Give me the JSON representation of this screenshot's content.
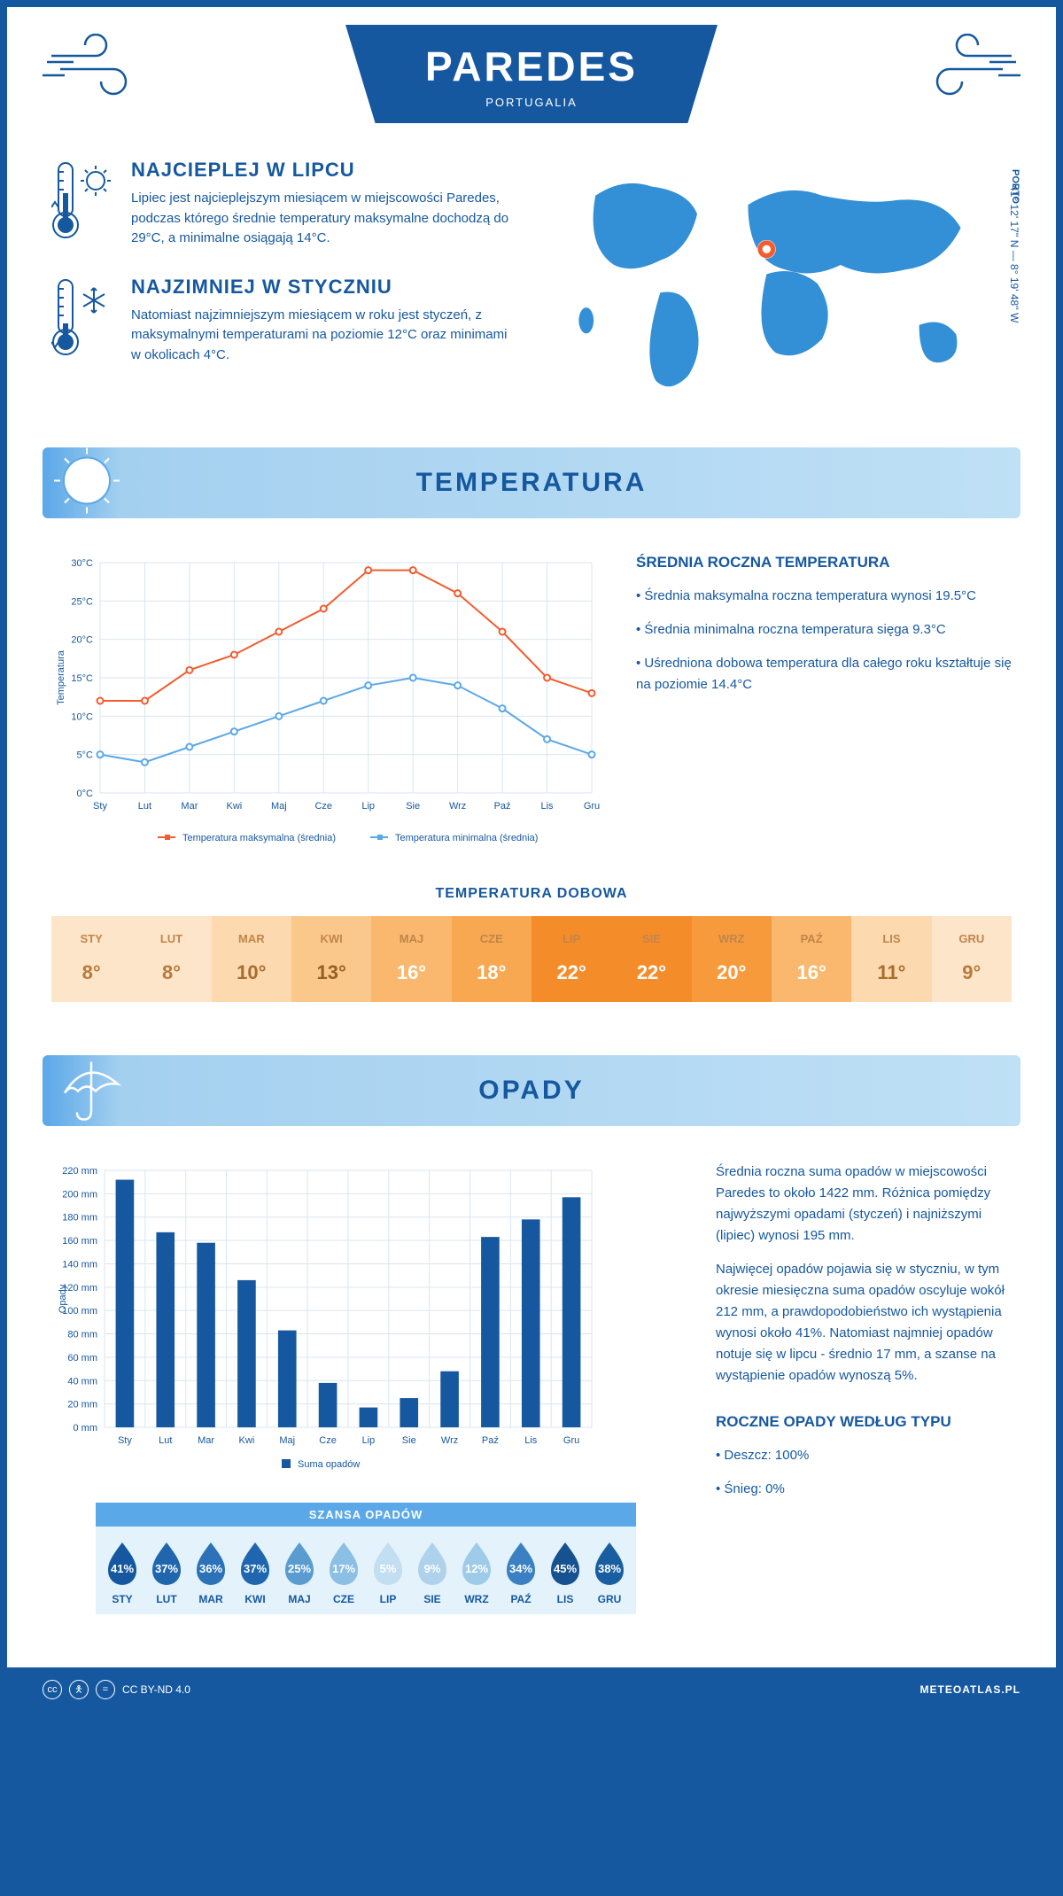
{
  "header": {
    "city": "PAREDES",
    "country": "PORTUGALIA"
  },
  "map": {
    "coords": "41° 12' 17'' N — 8° 19' 48'' W",
    "city_label": "PORTO",
    "marker_color": "#f25c2e",
    "land_color": "#338fd6"
  },
  "facts": {
    "hottest": {
      "title": "NAJCIEPLEJ W LIPCU",
      "body": "Lipiec jest najcieplejszym miesiącem w miejscowości Paredes, podczas którego średnie temperatury maksymalne dochodzą do 29°C, a minimalne osiągają 14°C."
    },
    "coldest": {
      "title": "NAJZIMNIEJ W STYCZNIU",
      "body": "Natomiast najzimniejszym miesiącem w roku jest styczeń, z maksymalnymi temperaturami na poziomie 12°C oraz minimami w okolicach 4°C."
    }
  },
  "temperature_section": {
    "title": "TEMPERATURA",
    "annual_title": "ŚREDNIA ROCZNA TEMPERATURA",
    "bullets": [
      "• Średnia maksymalna roczna temperatura wynosi 19.5°C",
      "• Średnia minimalna roczna temperatura sięga 9.3°C",
      "• Uśredniona dobowa temperatura dla całego roku kształtuje się na poziomie 14.4°C"
    ],
    "daily_title": "TEMPERATURA DOBOWA"
  },
  "temp_chart": {
    "type": "line",
    "months": [
      "Sty",
      "Lut",
      "Mar",
      "Kwi",
      "Maj",
      "Cze",
      "Lip",
      "Sie",
      "Wrz",
      "Paź",
      "Lis",
      "Gru"
    ],
    "max_series": [
      12,
      12,
      16,
      18,
      21,
      24,
      29,
      29,
      26,
      21,
      15,
      13
    ],
    "min_series": [
      5,
      4,
      6,
      8,
      10,
      12,
      14,
      15,
      14,
      11,
      7,
      5
    ],
    "max_color": "#f25c2e",
    "min_color": "#5aa8e8",
    "ylabel": "Temperatura",
    "ylim": [
      0,
      30
    ],
    "ytick_step": 5,
    "ytick_suffix": "°C",
    "grid_color": "#d9e6f0",
    "legend_max": "Temperatura maksymalna (średnia)",
    "legend_min": "Temperatura minimalna (średnia)",
    "label_fontsize": 11,
    "axis_text_color": "#1658a0"
  },
  "daily_temp_table": {
    "months": [
      "STY",
      "LUT",
      "MAR",
      "KWI",
      "MAJ",
      "CZE",
      "LIP",
      "SIE",
      "WRZ",
      "PAŹ",
      "LIS",
      "GRU"
    ],
    "values": [
      "8°",
      "8°",
      "10°",
      "13°",
      "16°",
      "18°",
      "22°",
      "22°",
      "20°",
      "16°",
      "11°",
      "9°"
    ],
    "bg_colors": [
      "#fde5c9",
      "#fde5c9",
      "#fcd9ae",
      "#fbc88c",
      "#f9b86d",
      "#f7a850",
      "#f58c2a",
      "#f58c2a",
      "#f79a3c",
      "#f9b86d",
      "#fcd9ae",
      "#fde5c9"
    ],
    "text_colors": [
      "#b77a3a",
      "#b77a3a",
      "#a86d2e",
      "#965e22",
      "#fff",
      "#fff",
      "#fff",
      "#fff",
      "#fff",
      "#fff",
      "#a86d2e",
      "#b77a3a"
    ]
  },
  "precip_section": {
    "title": "OPADY",
    "para1": "Średnia roczna suma opadów w miejscowości Paredes to około 1422 mm. Różnica pomiędzy najwyższymi opadami (styczeń) i najniższymi (lipiec) wynosi 195 mm.",
    "para2": "Najwięcej opadów pojawia się w styczniu, w tym okresie miesięczna suma opadów oscyluje wokół 212 mm, a prawdopodobieństwo ich wystąpienia wynosi około 41%. Natomiast najmniej opadów notuje się w lipcu - średnio 17 mm, a szanse na wystąpienie opadów wynoszą 5%.",
    "chance_title": "SZANSA OPADÓW",
    "bytype_title": "ROCZNE OPADY WEDŁUG TYPU",
    "rain": "• Deszcz: 100%",
    "snow": "• Śnieg: 0%"
  },
  "precip_chart": {
    "type": "bar",
    "months": [
      "Sty",
      "Lut",
      "Mar",
      "Kwi",
      "Maj",
      "Cze",
      "Lip",
      "Sie",
      "Wrz",
      "Paź",
      "Lis",
      "Gru"
    ],
    "values": [
      212,
      167,
      158,
      126,
      83,
      38,
      17,
      25,
      48,
      163,
      178,
      197
    ],
    "bar_color": "#1658a0",
    "ylabel": "Opady",
    "ylim": [
      0,
      220
    ],
    "ytick_step": 20,
    "ytick_suffix": " mm",
    "grid_color": "#d9e6f0",
    "legend": "Suma opadów",
    "label_fontsize": 11,
    "axis_text_color": "#1658a0",
    "bar_width": 0.45
  },
  "precip_chance": {
    "months": [
      "STY",
      "LUT",
      "MAR",
      "KWI",
      "MAJ",
      "CZE",
      "LIP",
      "SIE",
      "WRZ",
      "PAŹ",
      "LIS",
      "GRU"
    ],
    "values": [
      "41%",
      "37%",
      "36%",
      "37%",
      "25%",
      "17%",
      "5%",
      "9%",
      "12%",
      "34%",
      "45%",
      "38%"
    ],
    "fills": [
      "#1658a0",
      "#1f66ae",
      "#2b72b9",
      "#1f66ae",
      "#5a9cd0",
      "#8bbfe3",
      "#c2def1",
      "#aed2eb",
      "#9ecbe8",
      "#3a80c2",
      "#15528f",
      "#1a5ea2"
    ]
  },
  "footer": {
    "license": "CC BY-ND 4.0",
    "brand": "METEOATLAS.PL"
  },
  "colors": {
    "primary": "#1658a0",
    "light_blue": "#5aa8e8"
  }
}
